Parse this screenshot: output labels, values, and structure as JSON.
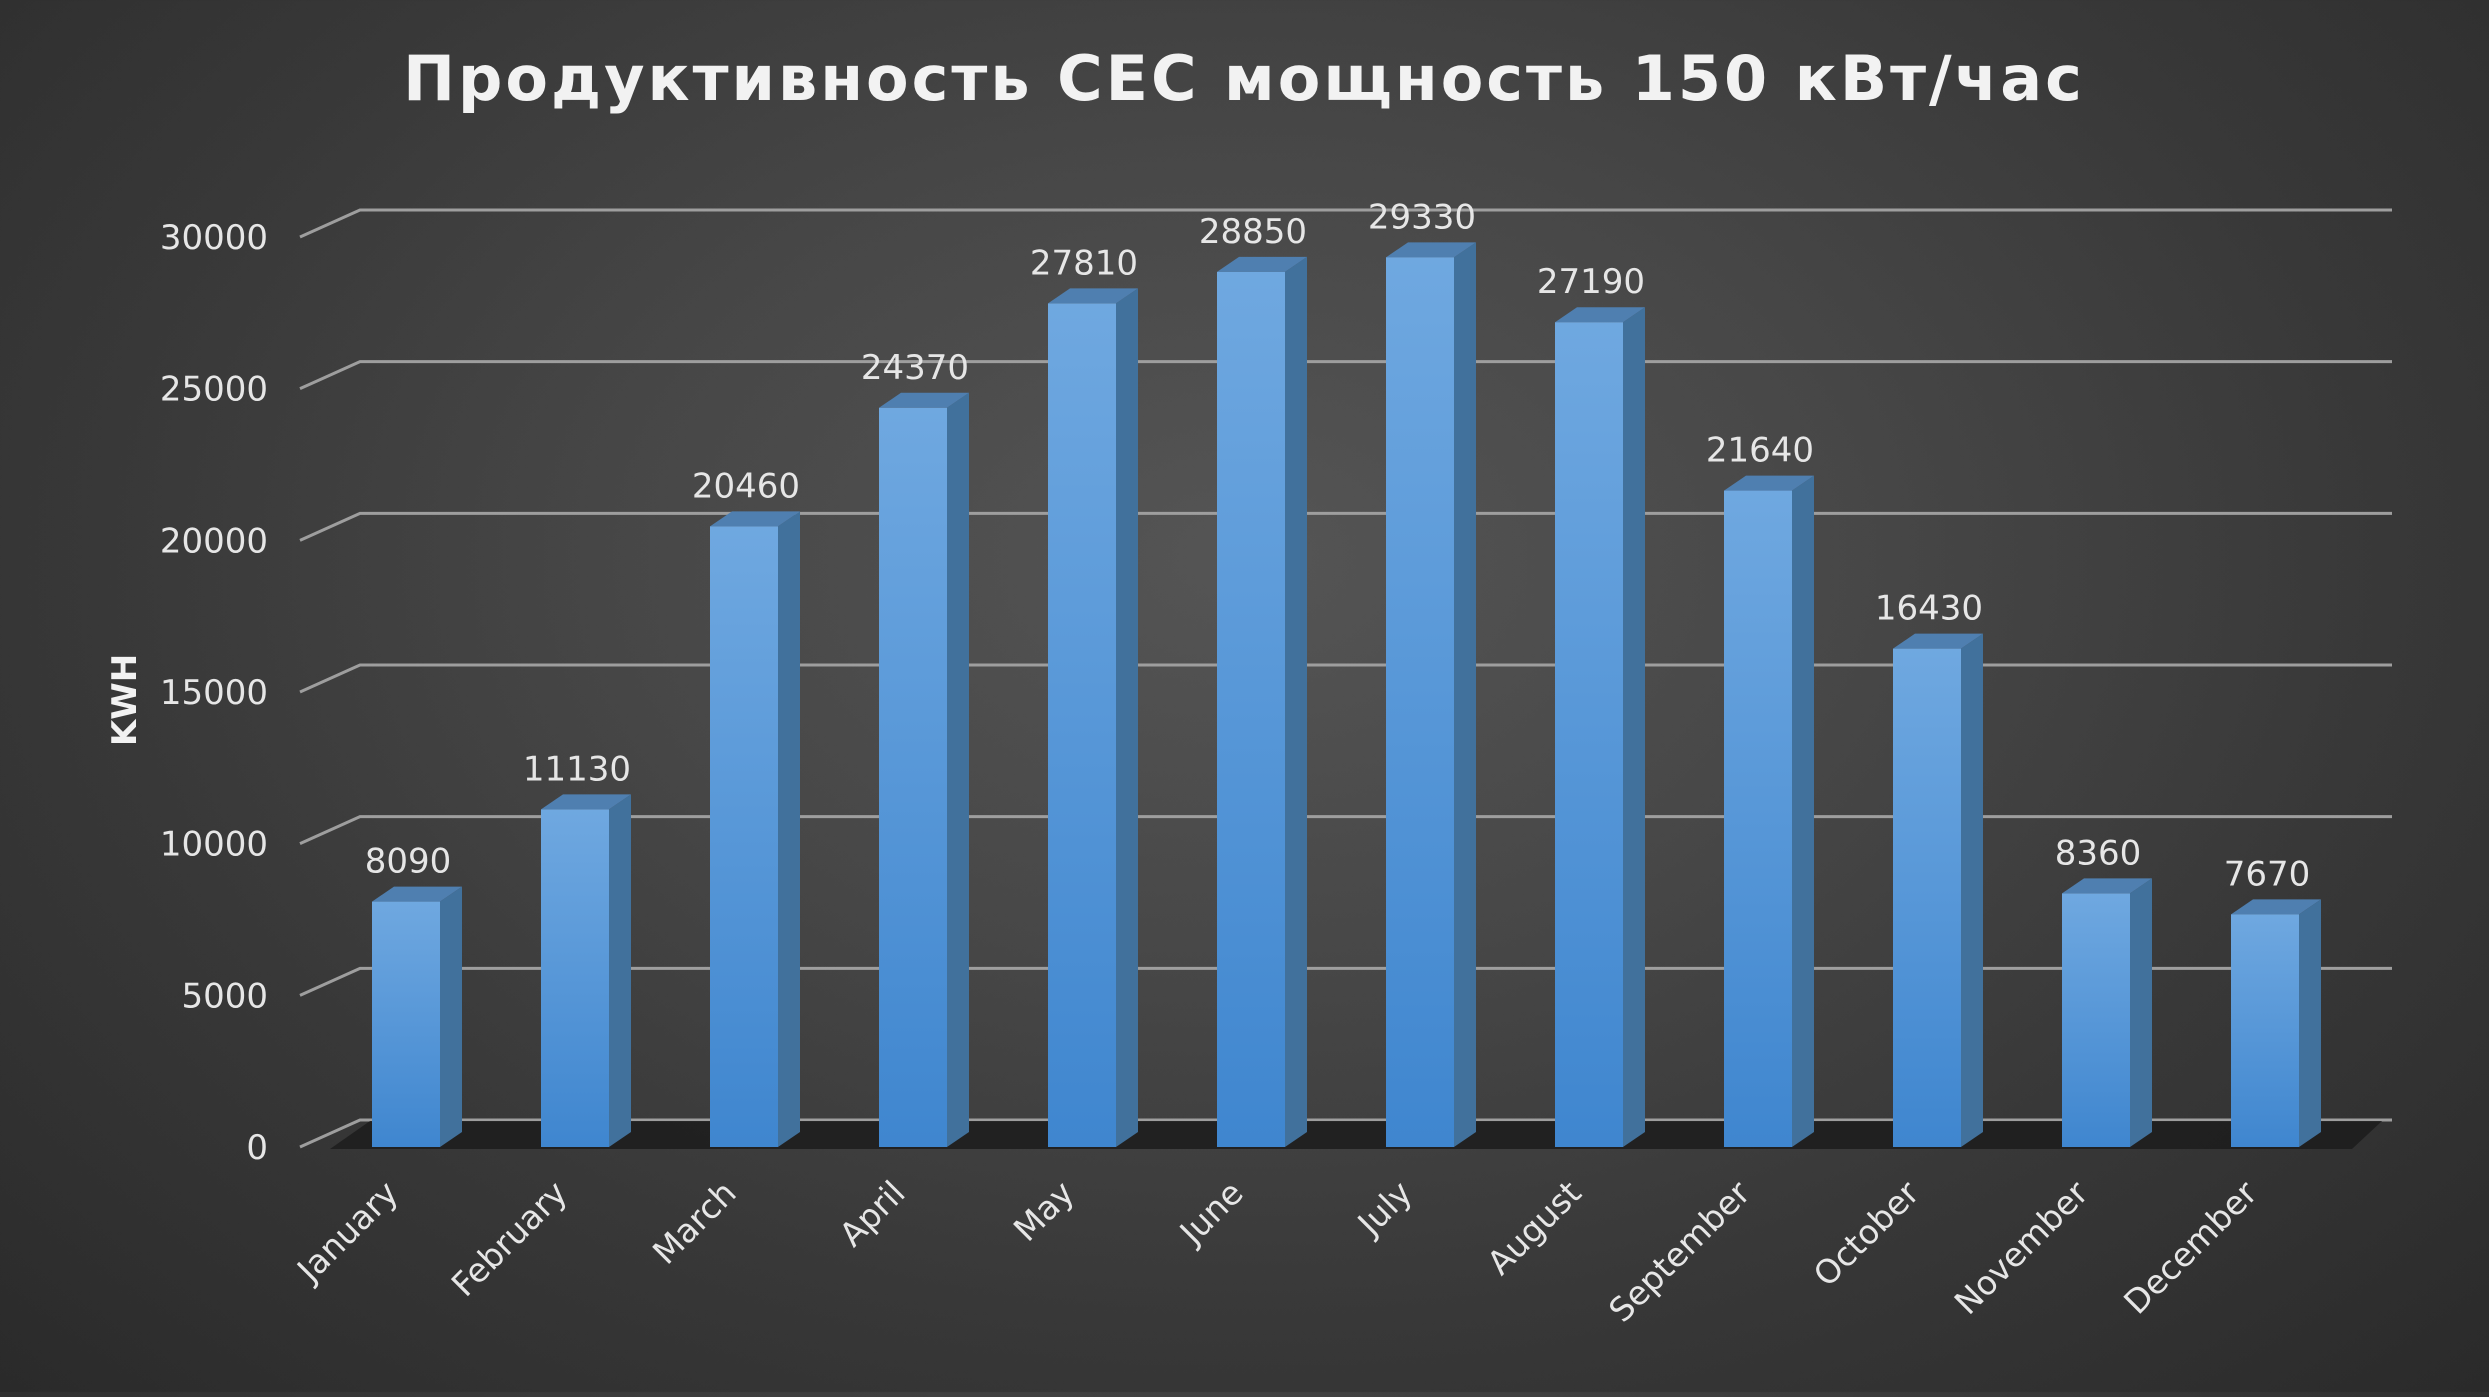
{
  "chart_data": {
    "type": "bar",
    "title": "Продуктивность СЕС мощность 150 кВт/час",
    "xlabel": "",
    "ylabel": "KWH",
    "categories": [
      "January",
      "February",
      "March",
      "April",
      "May",
      "June",
      "July",
      "August",
      "September",
      "October",
      "November",
      "December"
    ],
    "values": [
      8090,
      11130,
      20460,
      24370,
      27810,
      28850,
      29330,
      27190,
      21640,
      16430,
      8360,
      7670
    ],
    "ylim": [
      0,
      30000
    ],
    "yticks": [
      "0",
      "5000",
      "10000",
      "15000",
      "20000",
      "25000",
      "30000"
    ],
    "grid": true,
    "style_3d": true,
    "legend": "none",
    "colors": {
      "bar_front": "#5b9bd5",
      "bar_side": "#41719c",
      "bar_top": "#4f7fb0",
      "gridline": "#9e9e9e",
      "text": "#e6e6e6",
      "title": "#f2f2f2"
    }
  }
}
